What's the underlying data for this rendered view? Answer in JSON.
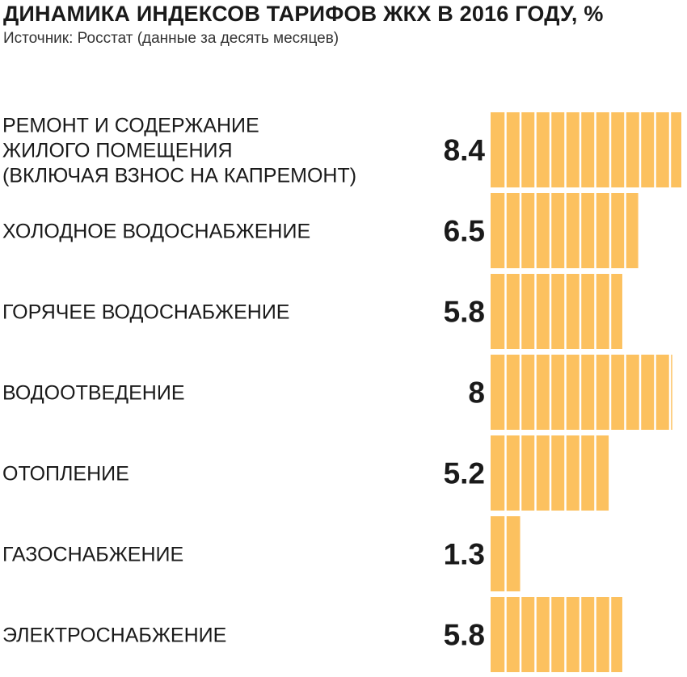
{
  "header": {
    "title": "ДИНАМИКА ИНДЕКСОВ ТАРИФОВ ЖКХ В 2016 ГОДУ, %",
    "subtitle": "Источник: Росстат (данные за десять месяцев)"
  },
  "chart_data": {
    "type": "bar",
    "orientation": "horizontal",
    "title": "ДИНАМИКА ИНДЕКСОВ ТАРИФОВ ЖКХ В 2016 ГОДУ, %",
    "subtitle": "Источник: Росстат (данные за десять месяцев)",
    "xlabel": "",
    "ylabel": "",
    "xlim": [
      0,
      8.4
    ],
    "grid": false,
    "bar_color": "#fcc15f",
    "categories": [
      [
        "РЕМОНТ И СОДЕРЖАНИЕ",
        "ЖИЛОГО ПОМЕЩЕНИЯ",
        "(ВКЛЮЧАЯ ВЗНОС НА КАПРЕМОНТ)"
      ],
      [
        "ХОЛОДНОЕ ВОДОСНАБЖЕНИЕ"
      ],
      [
        "ГОРЯЧЕЕ ВОДОСНАБЖЕНИЕ"
      ],
      [
        "ВОДООТВЕДЕНИЕ"
      ],
      [
        "ОТОПЛЕНИЕ"
      ],
      [
        "ГАЗОСНАБЖЕНИЕ"
      ],
      [
        "ЭЛЕКТРОСНАБЖЕНИЕ"
      ]
    ],
    "values": [
      8.4,
      6.5,
      5.8,
      8,
      5.2,
      1.3,
      5.8
    ],
    "value_labels": [
      "8.4",
      "6.5",
      "5.8",
      "8",
      "5.2",
      "1.3",
      "5.8"
    ]
  }
}
